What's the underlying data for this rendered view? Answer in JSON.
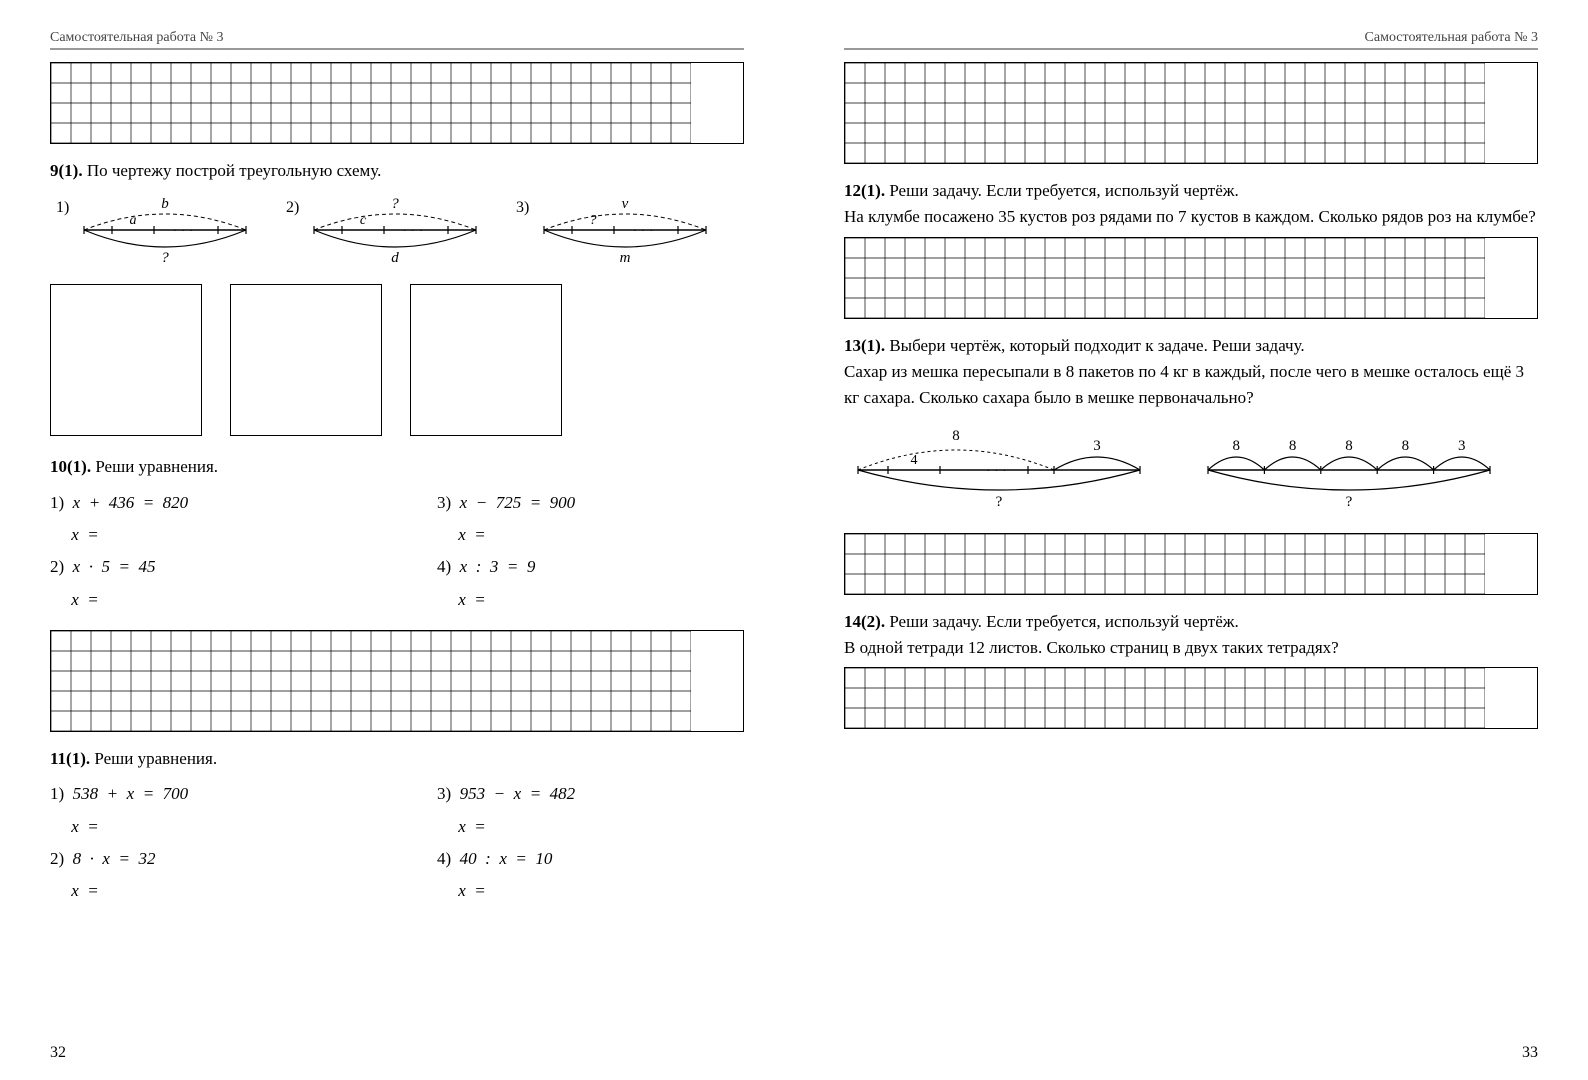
{
  "hdr_left": "Самостоятельная работа № 3",
  "hdr_right": "Самостоятельная работа № 3",
  "page_left_num": "32",
  "page_right_num": "33",
  "grid": {
    "cell": 20,
    "cols_std": 32,
    "stroke": "#000"
  },
  "diagram_colors": {
    "line": "#000",
    "dash": "4 3"
  },
  "p9": {
    "num": "9(1).",
    "title": "По чертежу построй треугольную схему.",
    "items": [
      {
        "n": "1)",
        "top": "b",
        "inner": "a",
        "bottom": "?"
      },
      {
        "n": "2)",
        "top": "?",
        "inner": "c",
        "bottom": "d"
      },
      {
        "n": "3)",
        "top": "v",
        "inner": "?",
        "bottom": "m"
      }
    ]
  },
  "p10": {
    "num": "10(1).",
    "title": "Реши уравнения.",
    "left": [
      {
        "n": "1)",
        "eq": "x  +  436  =  820",
        "ans": "x  ="
      },
      {
        "n": "2)",
        "eq": "x  ·  5  =  45",
        "ans": "x  ="
      }
    ],
    "right": [
      {
        "n": "3)",
        "eq": "x  −  725  =  900",
        "ans": "x  ="
      },
      {
        "n": "4)",
        "eq": "x  :  3  =  9",
        "ans": "x  ="
      }
    ]
  },
  "p11": {
    "num": "11(1).",
    "title": "Реши уравнения.",
    "left": [
      {
        "n": "1)",
        "eq": "538  +  x  =  700",
        "ans": "x  ="
      },
      {
        "n": "2)",
        "eq": "8  ·  x  =  32",
        "ans": "x  ="
      }
    ],
    "right": [
      {
        "n": "3)",
        "eq": "953  −  x  =  482",
        "ans": "x  ="
      },
      {
        "n": "4)",
        "eq": "40  :  x  =  10",
        "ans": "x  ="
      }
    ]
  },
  "p12": {
    "num": "12(1).",
    "title": "Реши задачу. Если требуется, используй чертёж.",
    "body": "На клумбе посажено 35 кустов роз рядами по 7 кустов в каждом. Сколько рядов роз на клумбе?"
  },
  "p13": {
    "num": "13(1).",
    "title": "Выбери чертёж, который подходит к задаче. Реши задачу.",
    "body": "Сахар из мешка пересыпали в 8 пакетов по 4 кг в каждый, после чего в мешке осталось ещё 3 кг сахара. Сколько сахара было в мешке первоначально?",
    "d1": {
      "top_main": "8",
      "top_side": "3",
      "inner": "4",
      "bottom": "?"
    },
    "d2": {
      "tops": [
        "8",
        "8",
        "8",
        "8",
        "3"
      ],
      "bottom": "?"
    }
  },
  "p14": {
    "num": "14(2).",
    "title": "Реши задачу. Если требуется, используй чертёж.",
    "body": "В одной тетради 12 листов. Сколько страниц в двух таких тетрадях?"
  }
}
